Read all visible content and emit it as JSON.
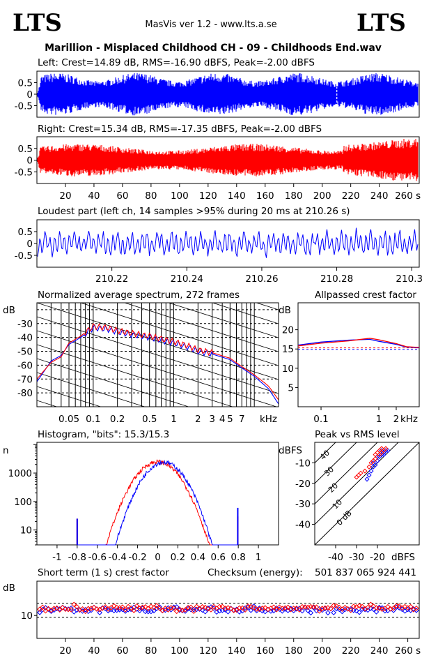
{
  "header": {
    "logo_left": "LTS",
    "logo_right": "LTS",
    "app_version": "MasVis ver 1.2 - www.lts.a.se",
    "track_title": "Marillion - Misplaced Childhood CH - 09 - Childhoods End.wav"
  },
  "colors": {
    "left_channel": "#0000ff",
    "right_channel": "#ff0000",
    "grid": "#000000"
  },
  "chart_data": [
    {
      "type": "area",
      "id": "left-waveform",
      "title": "Left: Crest=14.89 dB, RMS=-16.90 dBFS, Peak=-2.00 dBFS",
      "ylim": [
        -1,
        1
      ],
      "xlim": [
        0,
        268
      ],
      "yticks": [
        "0.5",
        "0",
        "-0.5"
      ],
      "yticks_values": [
        0.5,
        0,
        -0.5
      ]
    },
    {
      "type": "area",
      "id": "right-waveform",
      "title": "Right: Crest=15.34 dB, RMS=-17.35 dBFS, Peak=-2.00 dBFS",
      "ylim": [
        -1,
        1
      ],
      "xlim": [
        0,
        268
      ],
      "yticks": [
        "0.5",
        "0",
        "-0.5"
      ],
      "yticks_values": [
        0.5,
        0,
        -0.5
      ],
      "xticks": [
        "20",
        "40",
        "60",
        "80",
        "100",
        "120",
        "140",
        "160",
        "180",
        "200",
        "220",
        "240",
        "260 s"
      ],
      "xticks_values": [
        20,
        40,
        60,
        80,
        100,
        120,
        140,
        160,
        180,
        200,
        220,
        240,
        260
      ]
    },
    {
      "type": "line",
      "id": "loudest-part",
      "title": "Loudest part (left  ch, 14 samples >95% during 20 ms at 210.26 s)",
      "xlim": [
        210.2,
        210.302
      ],
      "ylim": [
        -1,
        1
      ],
      "yticks": [
        "0.5",
        "0",
        "-0.5"
      ],
      "yticks_values": [
        0.5,
        0,
        -0.5
      ],
      "xticks": [
        "210.22",
        "210.24",
        "210.26",
        "210.28",
        "210.3s"
      ],
      "xticks_values": [
        210.22,
        210.24,
        210.26,
        210.28,
        210.3
      ]
    },
    {
      "type": "line",
      "id": "spectrum",
      "title": "Normalized average spectrum, 272 frames",
      "ylabel": "dB",
      "yticks": [
        "-30",
        "-40",
        "-50",
        "-60",
        "-70",
        "-80"
      ],
      "yticks_values": [
        -30,
        -40,
        -50,
        -60,
        -70,
        -80
      ],
      "ylim": [
        -90,
        -15
      ],
      "xticks": [
        "0.05",
        "0.1",
        "0.2",
        "0.5",
        "1",
        "2",
        "3",
        "4",
        "5",
        "7",
        "kHz"
      ],
      "xticks_values": [
        0.05,
        0.1,
        0.2,
        0.5,
        1,
        2,
        3,
        4,
        5,
        7
      ],
      "xlim_khz": [
        0.02,
        20
      ],
      "series": [
        {
          "color": "blue",
          "x": [
            0.02,
            0.03,
            0.04,
            0.05,
            0.07,
            0.1,
            0.15,
            0.2,
            0.3,
            0.5,
            0.7,
            1,
            1.5,
            2,
            3,
            5,
            7,
            10,
            15,
            20
          ],
          "y": [
            -72,
            -57,
            -53,
            -45,
            -40,
            -33,
            -34,
            -36,
            -38,
            -40,
            -42,
            -44,
            -47,
            -50,
            -52,
            -56,
            -62,
            -68,
            -77,
            -88
          ]
        },
        {
          "color": "red",
          "x": [
            0.02,
            0.03,
            0.04,
            0.05,
            0.07,
            0.1,
            0.15,
            0.2,
            0.3,
            0.5,
            0.7,
            1,
            1.5,
            2,
            3,
            5,
            7,
            10,
            15,
            20
          ],
          "y": [
            -70,
            -58,
            -54,
            -44,
            -39,
            -32,
            -33,
            -35,
            -37,
            -39,
            -41,
            -43,
            -46,
            -49,
            -51,
            -55,
            -61,
            -67,
            -75,
            -85
          ]
        }
      ]
    },
    {
      "type": "line",
      "id": "allpassed-crest",
      "title": "Allpassed crest factor",
      "ylabel": "dB",
      "yticks": [
        "20",
        "15",
        "10",
        "5"
      ],
      "yticks_values": [
        20,
        15,
        10,
        5
      ],
      "ylim": [
        0,
        27
      ],
      "xticks": [
        "0.1",
        "1",
        "2",
        "kHz"
      ],
      "xticks_values": [
        0.1,
        1,
        2
      ],
      "xlim_khz": [
        0.04,
        5
      ],
      "reference_db": [
        14.9,
        15.3
      ],
      "series": [
        {
          "color": "blue",
          "x": [
            0.04,
            0.1,
            0.3,
            0.7,
            1,
            2,
            3,
            5
          ],
          "y": [
            16,
            16.8,
            17.3,
            17.5,
            17,
            16.2,
            15.5,
            15.3
          ]
        },
        {
          "color": "red",
          "x": [
            0.04,
            0.1,
            0.3,
            0.7,
            1,
            2,
            3,
            5
          ],
          "y": [
            15.8,
            16.5,
            17.1,
            17.8,
            17.4,
            16.4,
            15.6,
            15.4
          ]
        }
      ]
    },
    {
      "type": "line",
      "id": "histogram",
      "title": "Histogram, \"bits\": 15.3/15.3",
      "ylabel": "n",
      "yscale": "log",
      "yticks": [
        "1000",
        "100",
        "10"
      ],
      "yticks_values": [
        1000,
        100,
        10
      ],
      "ylim": [
        3,
        12000
      ],
      "xlim": [
        -1.2,
        1.2
      ],
      "xticks": [
        "-1",
        "-0.8",
        "-0.6",
        "-0.4",
        "-0.2",
        "0",
        "0.2",
        "0.4",
        "0.6",
        "0.8",
        "1"
      ],
      "xticks_values": [
        -1,
        -0.8,
        -0.6,
        -0.4,
        -0.2,
        0,
        0.2,
        0.4,
        0.6,
        0.8,
        1
      ],
      "series": [
        {
          "color": "red",
          "peak_x": 0.0,
          "peak_y": 2500,
          "width": 0.25,
          "clip_x": [
            -0.8,
            0.795
          ]
        },
        {
          "color": "blue",
          "peak_x": 0.06,
          "peak_y": 2400,
          "width": 0.235,
          "clip_x": [
            -0.8,
            0.795
          ]
        }
      ]
    },
    {
      "type": "scatter",
      "id": "peak-vs-rms",
      "title": "Peak vs RMS level",
      "ylabel": "dBFS",
      "xlabel": "dBFS",
      "yticks": [
        "-10",
        "-20",
        "-30",
        "-40"
      ],
      "yticks_values": [
        -10,
        -20,
        -30,
        -40
      ],
      "xticks": [
        "-40",
        "-30",
        "-20"
      ],
      "xticks_values": [
        -40,
        -30,
        -20
      ],
      "xlim": [
        -50,
        0
      ],
      "ylim": [
        -50,
        0
      ],
      "crest_lines": [
        "40",
        "30",
        "20",
        "10",
        "0 dB"
      ],
      "crest_values": [
        40,
        30,
        20,
        10,
        0
      ],
      "series": [
        {
          "color": "blue",
          "points": [
            [
              -18,
              -6
            ],
            [
              -17,
              -5
            ],
            [
              -16,
              -4
            ],
            [
              -19,
              -7
            ],
            [
              -20,
              -9
            ],
            [
              -21,
              -11
            ],
            [
              -22,
              -12
            ],
            [
              -23,
              -14
            ],
            [
              -24,
              -16
            ],
            [
              -18,
              -4
            ],
            [
              -17,
              -6
            ],
            [
              -15,
              -4
            ],
            [
              -20,
              -7
            ],
            [
              -22,
              -10
            ],
            [
              -25,
              -18
            ]
          ]
        },
        {
          "color": "red",
          "points": [
            [
              -18,
              -5
            ],
            [
              -17,
              -4
            ],
            [
              -16,
              -3
            ],
            [
              -19,
              -6
            ],
            [
              -21,
              -8
            ],
            [
              -22,
              -9
            ],
            [
              -23,
              -10
            ],
            [
              -28,
              -15
            ],
            [
              -29,
              -16
            ],
            [
              -30,
              -17
            ],
            [
              -20,
              -5
            ],
            [
              -18,
              -3
            ],
            [
              -24,
              -12
            ],
            [
              -26,
              -14
            ],
            [
              -19,
              -4
            ],
            [
              -21,
              -6
            ]
          ]
        }
      ]
    },
    {
      "type": "scatter",
      "id": "short-term-crest",
      "title": "Short term (1 s) crest factor",
      "checksum_label": "Checksum (energy):",
      "checksum_value": "501 837 065 924 441",
      "ylabel": "dB",
      "yticks": [
        "10"
      ],
      "yticks_values": [
        10
      ],
      "ylim": [
        0,
        25
      ],
      "xlim": [
        0,
        268
      ],
      "xticks": [
        "20",
        "40",
        "60",
        "80",
        "100",
        "120",
        "140",
        "160",
        "180",
        "200",
        "220",
        "240",
        "260 s"
      ],
      "xticks_values": [
        20,
        40,
        60,
        80,
        100,
        120,
        140,
        160,
        180,
        200,
        220,
        240,
        260
      ],
      "series": [
        {
          "color": "blue",
          "mean": 12.5,
          "spread": 2.2
        },
        {
          "color": "red",
          "mean": 13.2,
          "spread": 2.4
        }
      ]
    }
  ]
}
